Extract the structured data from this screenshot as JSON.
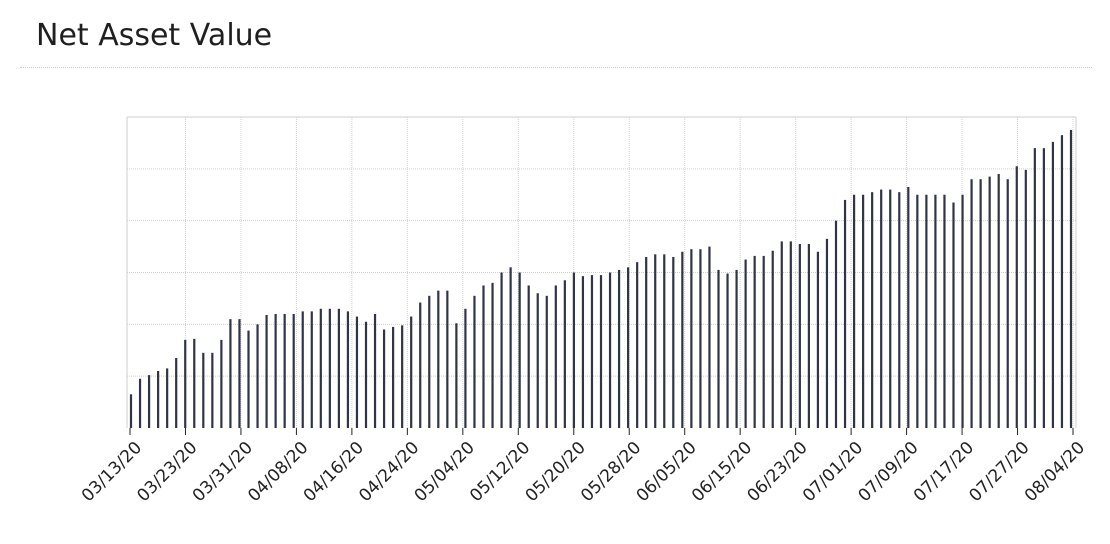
{
  "header": {
    "title": "Net Asset Value"
  },
  "colors": {
    "bar": "#2f3447",
    "grid": "#cfcfcf",
    "axis_tick": "#222222"
  },
  "chart_data": {
    "type": "bar",
    "title": "Net Asset Value",
    "xlabel": "",
    "ylabel": "",
    "grid": true,
    "y_axis_labels_visible": false,
    "ylim": [
      0,
      6
    ],
    "x_tick_labels": [
      "03/13/20",
      "03/23/20",
      "03/31/20",
      "04/08/20",
      "04/16/20",
      "04/24/20",
      "05/04/20",
      "05/12/20",
      "05/20/20",
      "05/28/20",
      "06/05/20",
      "06/15/20",
      "06/23/20",
      "07/01/20",
      "07/09/20",
      "07/17/20",
      "07/27/20",
      "08/04/20"
    ],
    "values": [
      0.65,
      0.95,
      1.02,
      1.1,
      1.15,
      1.35,
      1.7,
      1.72,
      1.45,
      1.45,
      1.7,
      2.1,
      2.1,
      1.88,
      2.0,
      2.18,
      2.2,
      2.2,
      2.2,
      2.25,
      2.25,
      2.3,
      2.3,
      2.3,
      2.25,
      2.15,
      2.05,
      2.2,
      1.9,
      1.95,
      1.98,
      2.15,
      2.42,
      2.55,
      2.65,
      2.65,
      2.02,
      2.3,
      2.55,
      2.75,
      2.8,
      3.0,
      3.1,
      3.0,
      2.75,
      2.6,
      2.55,
      2.75,
      2.85,
      3.0,
      2.93,
      2.95,
      2.95,
      3.0,
      3.05,
      3.1,
      3.2,
      3.3,
      3.35,
      3.35,
      3.3,
      3.4,
      3.45,
      3.45,
      3.5,
      3.05,
      2.98,
      3.05,
      3.25,
      3.32,
      3.32,
      3.42,
      3.6,
      3.6,
      3.55,
      3.55,
      3.4,
      3.65,
      4.0,
      4.4,
      4.5,
      4.5,
      4.55,
      4.6,
      4.6,
      4.55,
      4.65,
      4.5,
      4.5,
      4.5,
      4.5,
      4.35,
      4.5,
      4.8,
      4.8,
      4.85,
      4.9,
      4.8,
      5.05,
      4.98,
      5.4,
      5.4,
      5.52,
      5.65,
      5.75
    ]
  }
}
